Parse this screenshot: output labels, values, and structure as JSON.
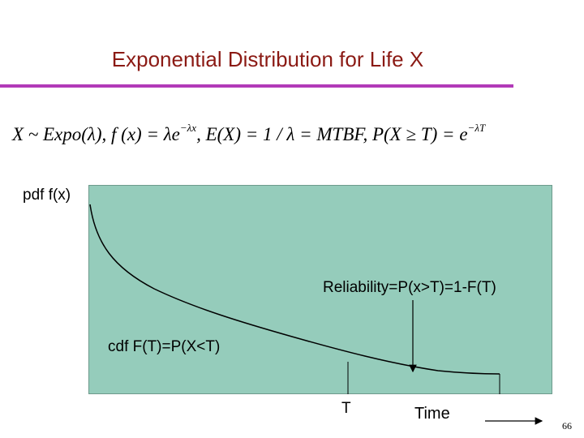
{
  "slide": {
    "title": "Exponential Distribution for Life X",
    "page_number": "66"
  },
  "formula": {
    "p1": "X ~ Expo(λ),  f (x) = λe",
    "p1_sup": "−λx",
    "p2": ",  E(X) = 1 / λ = MTBF,  P(X ≥ T) = e",
    "p2_sup": "−λT"
  },
  "diagram": {
    "y_label": "pdf f(x)",
    "reliability_label": "Reliability=P(x>T)=1-F(T)",
    "cdf_label": "cdf F(T)=P(X<T)",
    "t_label": "T",
    "time_label": "Time"
  },
  "colors": {
    "title": "#8b1a14",
    "rule": "#b23ab8",
    "plot_fill": "#95ccbb"
  }
}
